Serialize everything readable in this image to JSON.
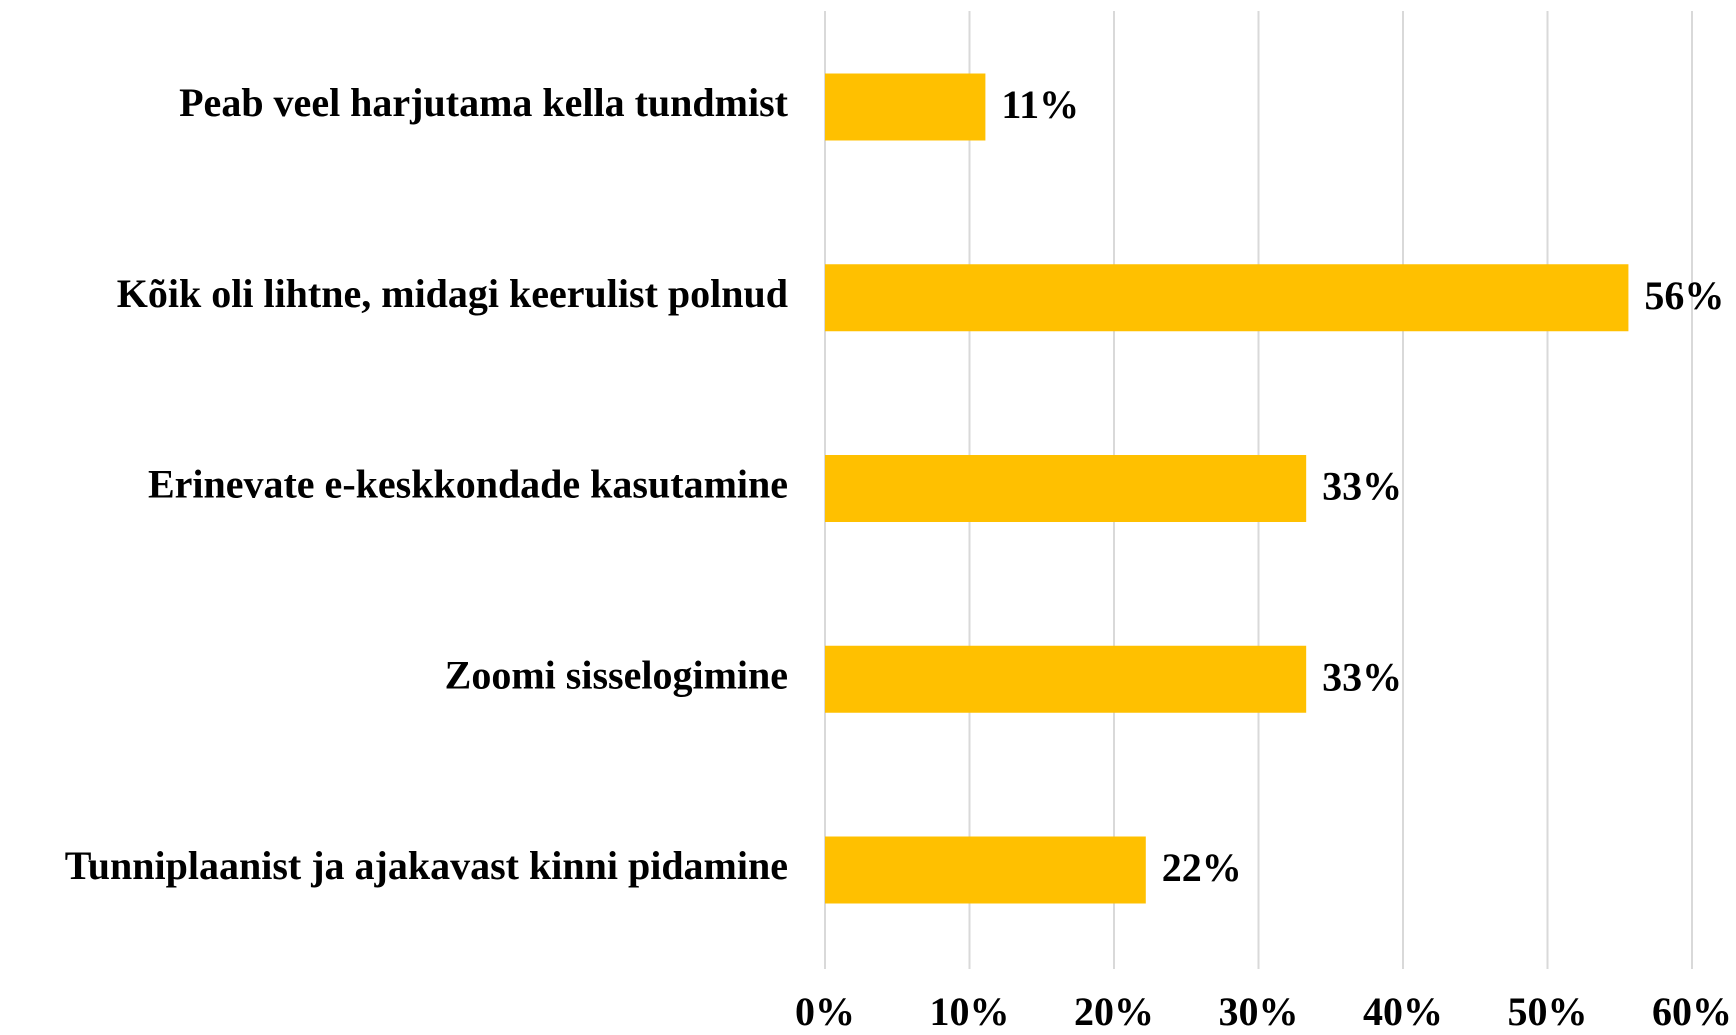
{
  "chart_data": {
    "type": "barh",
    "categories": [
      "Peab veel harjutama kella tundmist",
      "Kõik oli lihtne, midagi keerulist polnud",
      "Erinevate e-keskkondade kasutamine",
      "Zoomi sisselogimine",
      "Tunniplaanist ja ajakavast kinni pidamine"
    ],
    "values": [
      11.1,
      55.6,
      33.3,
      33.3,
      22.2
    ],
    "value_labels": [
      "11%",
      "56%",
      "33%",
      "33%",
      "22%"
    ],
    "color": "#ffc000",
    "xlim": [
      0,
      60
    ],
    "xticks": [
      {
        "value": 0,
        "label": "0%"
      },
      {
        "value": 10,
        "label": "10%"
      },
      {
        "value": 20,
        "label": "20%"
      },
      {
        "value": 30,
        "label": "30%"
      },
      {
        "value": 40,
        "label": "40%"
      },
      {
        "value": 50,
        "label": "50%"
      },
      {
        "value": 60,
        "label": "60%"
      }
    ],
    "grid": true
  }
}
